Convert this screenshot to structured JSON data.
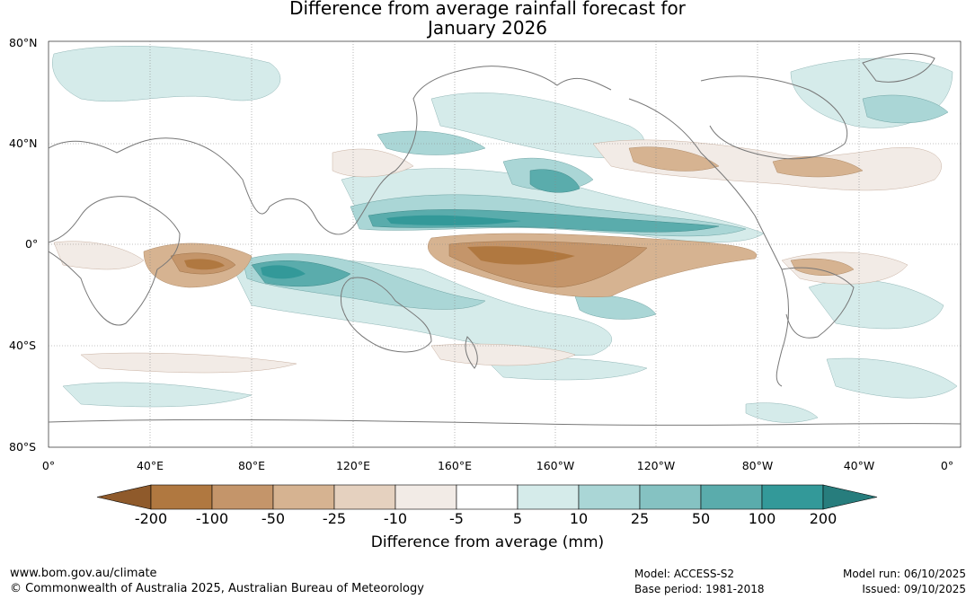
{
  "header": {
    "title_line1": "Difference from average rainfall forecast for",
    "title_line2": "January 2026"
  },
  "map": {
    "lat_labels": [
      "80°N",
      "40°N",
      "0°",
      "40°S",
      "80°S"
    ],
    "lon_labels": [
      "0°",
      "40°E",
      "80°E",
      "120°E",
      "160°E",
      "160°W",
      "120°W",
      "80°W",
      "40°W",
      "0°"
    ]
  },
  "colorbar": {
    "ticks": [
      "-200",
      "-100",
      "-50",
      "-25",
      "-10",
      "-5",
      "5",
      "10",
      "25",
      "50",
      "100",
      "200"
    ],
    "colors": [
      "#8f5a2b",
      "#b07840",
      "#c4956a",
      "#d6b391",
      "#e5d1bf",
      "#f2ebe6",
      "#ffffff",
      "#d5ebea",
      "#aad6d6",
      "#85c2c2",
      "#5aacac",
      "#339999",
      "#277d7d"
    ],
    "label": "Difference from average (mm)"
  },
  "footer": {
    "website": "www.bom.gov.au/climate",
    "copyright": "© Commonwealth of Australia 2025, Australian Bureau of Meteorology",
    "model": "Model: ACCESS-S2",
    "base_period": "Base period: 1981-2018",
    "model_run": "Model run: 06/10/2025",
    "issued": "Issued: 09/10/2025"
  }
}
